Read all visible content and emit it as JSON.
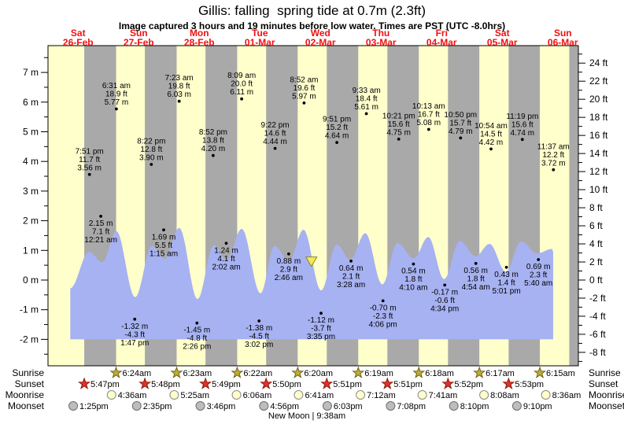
{
  "header": {
    "title": "Gillis: falling  spring tide at 0.7m (2.3ft)",
    "subtitle": "Image captured 3 hours and 19 minutes before low water. Times are PST (UTC -8.0hrs)"
  },
  "days": [
    {
      "dow": "Sat",
      "date": "26-Feb"
    },
    {
      "dow": "Sun",
      "date": "27-Feb"
    },
    {
      "dow": "Mon",
      "date": "28-Feb"
    },
    {
      "dow": "Tue",
      "date": "01-Mar"
    },
    {
      "dow": "Wed",
      "date": "02-Mar"
    },
    {
      "dow": "Thu",
      "date": "03-Mar"
    },
    {
      "dow": "Fri",
      "date": "04-Mar"
    },
    {
      "dow": "Sat",
      "date": "05-Mar"
    },
    {
      "dow": "Sun",
      "date": "06-Mar"
    }
  ],
  "chart_data": {
    "type": "area",
    "title": "Gillis: falling  spring tide at 0.7m (2.3ft)",
    "y_axis_left": {
      "unit": "m",
      "major_ticks": [
        7,
        6,
        5,
        4,
        3,
        2,
        1,
        0,
        -1,
        -2
      ]
    },
    "y_axis_right": {
      "unit": "ft",
      "major_ticks": [
        24,
        22,
        20,
        18,
        16,
        14,
        12,
        10,
        8,
        6,
        4,
        2,
        0,
        -2,
        -4,
        -6,
        -8
      ]
    },
    "fill_base_m": -2.0,
    "tide_events": [
      {
        "day": 0,
        "time": "7:51 pm",
        "ft": "11.7 ft",
        "m": "3.56 m",
        "type": "high"
      },
      {
        "day": 1,
        "time": "12:21 am",
        "ft": "7.1 ft",
        "m": "2.15 m",
        "type": "low"
      },
      {
        "day": 1,
        "time": "6:31 am",
        "ft": "18.9 ft",
        "m": "5.77 m",
        "type": "high"
      },
      {
        "day": 1,
        "time": "1:47 pm",
        "ft": "-4.3 ft",
        "m": "-1.32 m",
        "type": "low"
      },
      {
        "day": 1,
        "time": "8:22 pm",
        "ft": "12.8 ft",
        "m": "3.90 m",
        "type": "high"
      },
      {
        "day": 2,
        "time": "1:15 am",
        "ft": "5.5 ft",
        "m": "1.69 m",
        "type": "low"
      },
      {
        "day": 2,
        "time": "7:23 am",
        "ft": "19.8 ft",
        "m": "6.03 m",
        "type": "high"
      },
      {
        "day": 2,
        "time": "2:26 pm",
        "ft": "-4.8 ft",
        "m": "-1.45 m",
        "type": "low"
      },
      {
        "day": 2,
        "time": "8:52 pm",
        "ft": "13.8 ft",
        "m": "4.20 m",
        "type": "high"
      },
      {
        "day": 3,
        "time": "2:02 am",
        "ft": "4.1 ft",
        "m": "1.24 m",
        "type": "low"
      },
      {
        "day": 3,
        "time": "8:09 am",
        "ft": "20.0 ft",
        "m": "6.11 m",
        "type": "high"
      },
      {
        "day": 3,
        "time": "3:02 pm",
        "ft": "-4.5 ft",
        "m": "-1.38 m",
        "type": "low"
      },
      {
        "day": 3,
        "time": "9:22 pm",
        "ft": "14.6 ft",
        "m": "4.44 m",
        "type": "high"
      },
      {
        "day": 4,
        "time": "2:46 am",
        "ft": "2.9 ft",
        "m": "0.88 m",
        "type": "low"
      },
      {
        "day": 4,
        "time": "8:52 am",
        "ft": "19.6 ft",
        "m": "5.97 m",
        "type": "high"
      },
      {
        "day": 4,
        "time": "3:35 pm",
        "ft": "-3.7 ft",
        "m": "-1.12 m",
        "type": "low"
      },
      {
        "day": 4,
        "time": "9:51 pm",
        "ft": "15.2 ft",
        "m": "4.64 m",
        "type": "high"
      },
      {
        "day": 5,
        "time": "3:28 am",
        "ft": "2.1 ft",
        "m": "0.64 m",
        "type": "low"
      },
      {
        "day": 5,
        "time": "9:33 am",
        "ft": "18.4 ft",
        "m": "5.61 m",
        "type": "high"
      },
      {
        "day": 5,
        "time": "4:06 pm",
        "ft": "-2.3 ft",
        "m": "-0.70 m",
        "type": "low"
      },
      {
        "day": 5,
        "time": "10:21 pm",
        "ft": "15.6 ft",
        "m": "4.75 m",
        "type": "high"
      },
      {
        "day": 6,
        "time": "4:10 am",
        "ft": "1.8 ft",
        "m": "0.54 m",
        "type": "low"
      },
      {
        "day": 6,
        "time": "10:13 am",
        "ft": "16.7 ft",
        "m": "5.08 m",
        "type": "high"
      },
      {
        "day": 6,
        "time": "4:34 pm",
        "ft": "-0.6 ft",
        "m": "-0.17 m",
        "type": "low"
      },
      {
        "day": 6,
        "time": "10:50 pm",
        "ft": "15.7 ft",
        "m": "4.79 m",
        "type": "high"
      },
      {
        "day": 7,
        "time": "4:54 am",
        "ft": "1.8 ft",
        "m": "0.56 m",
        "type": "low"
      },
      {
        "day": 7,
        "time": "10:54 am",
        "ft": "14.5 ft",
        "m": "4.42 m",
        "type": "high"
      },
      {
        "day": 7,
        "time": "5:01 pm",
        "ft": "1.4 ft",
        "m": "0.43 m",
        "type": "low"
      },
      {
        "day": 7,
        "time": "11:19 pm",
        "ft": "15.6 ft",
        "m": "4.74 m",
        "type": "high"
      },
      {
        "day": 8,
        "time": "5:40 am",
        "ft": "2.3 ft",
        "m": "0.69 m",
        "type": "low"
      },
      {
        "day": 8,
        "time": "11:37 am",
        "ft": "12.2 ft",
        "m": "3.72 m",
        "type": "high"
      }
    ],
    "curve_profile": [
      [
        0.51,
        -0.28
      ],
      [
        0.82,
        0.95
      ],
      [
        1.04,
        0.6
      ],
      [
        1.27,
        1.65
      ],
      [
        1.58,
        -0.58
      ],
      [
        1.86,
        1.15
      ],
      [
        2.07,
        0.72
      ],
      [
        2.31,
        1.76
      ],
      [
        2.61,
        -0.64
      ],
      [
        2.88,
        1.18
      ],
      [
        3.09,
        0.68
      ],
      [
        3.34,
        1.73
      ],
      [
        3.65,
        -0.45
      ],
      [
        3.88,
        1.15
      ],
      [
        4.12,
        0.66
      ],
      [
        4.36,
        1.7
      ],
      [
        4.65,
        -0.35
      ],
      [
        4.91,
        1.2
      ],
      [
        5.13,
        0.68
      ],
      [
        5.38,
        1.58
      ],
      [
        5.66,
        -0.15
      ],
      [
        5.91,
        1.25
      ],
      [
        6.18,
        0.73
      ],
      [
        6.42,
        1.45
      ],
      [
        6.68,
        0.03
      ],
      [
        6.94,
        1.32
      ],
      [
        7.2,
        0.8
      ],
      [
        7.43,
        1.22
      ],
      [
        7.7,
        0.28
      ],
      [
        7.95,
        1.3
      ],
      [
        8.22,
        0.9
      ],
      [
        8.46,
        1.05
      ],
      [
        8.48,
        0.95
      ]
    ],
    "current_position_marker": {
      "day_frac": 4.49,
      "level_m": 0.62
    }
  },
  "astro": {
    "rows": [
      {
        "label": "Sunrise",
        "icon": "sunrise-star",
        "first_day": 1,
        "times": [
          "6:24am",
          "6:23am",
          "6:22am",
          "6:20am",
          "6:19am",
          "6:18am",
          "6:17am",
          "6:15am"
        ]
      },
      {
        "label": "Sunset",
        "icon": "sunset-star",
        "first_day": 0,
        "times": [
          "5:47pm",
          "5:48pm",
          "5:49pm",
          "5:50pm",
          "5:51pm",
          "5:51pm",
          "5:52pm",
          "5:53pm"
        ]
      },
      {
        "label": "Moonrise",
        "icon": "moonrise-circle",
        "first_day": 1,
        "times": [
          "4:36am",
          "5:25am",
          "6:06am",
          "6:41am",
          "7:12am",
          "7:41am",
          "8:08am",
          "8:36am"
        ]
      },
      {
        "label": "Moonset",
        "icon": "moonset-circle",
        "first_day": 0,
        "times": [
          "1:25pm",
          "2:35pm",
          "3:46pm",
          "4:56pm",
          "6:03pm",
          "7:08pm",
          "8:10pm",
          "9:10pm"
        ]
      }
    ],
    "moon_phase": "New Moon | 9:38am"
  },
  "colors": {
    "day_band": "#ffffcc",
    "night_band": "#a9a9a9",
    "tide_fill": "#a7b2f2",
    "marker_fill": "#f2ea54",
    "marker_stroke": "#8e8623",
    "date_label": "#ee1111",
    "sunrise_star": "#bfae34",
    "sunrise_star_stroke": "#6f6218",
    "sunset_star": "#e03226",
    "sunset_star_stroke": "#8c1a12",
    "moonrise_fill": "#ffffcc",
    "moonrise_stroke": "#8a8a8a",
    "moonset_fill": "#bdbdbd",
    "moonset_stroke": "#6e6e6e"
  }
}
